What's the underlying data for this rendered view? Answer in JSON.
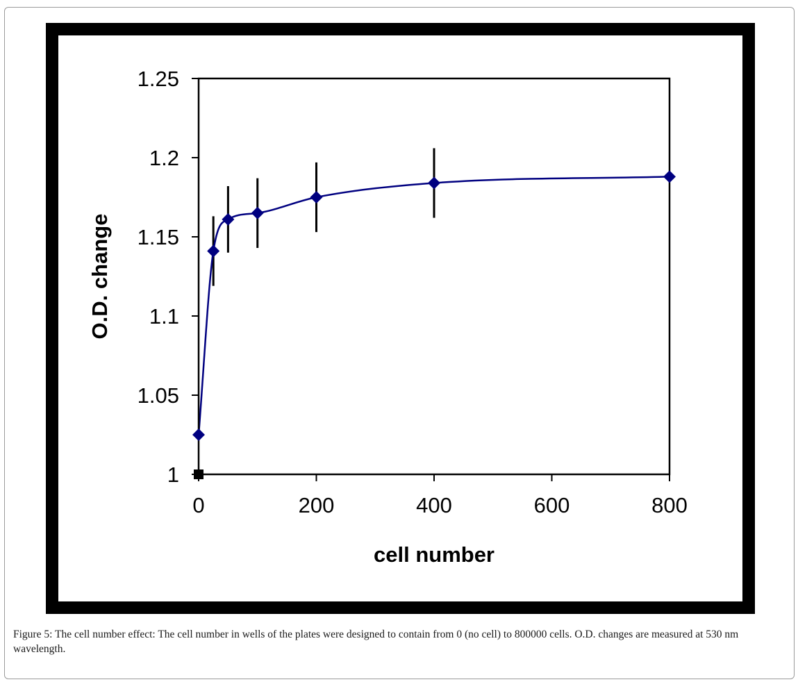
{
  "chart_data": {
    "type": "scatter",
    "title": "",
    "xlabel": "cell number",
    "ylabel": "O.D. change",
    "xlim": [
      0,
      800
    ],
    "ylim": [
      1,
      1.25
    ],
    "x_ticks": [
      0,
      200,
      400,
      600,
      800
    ],
    "x_tick_labels": [
      "0",
      "200",
      "400",
      "600",
      "800"
    ],
    "y_ticks": [
      1,
      1.05,
      1.1,
      1.15,
      1.2,
      1.25
    ],
    "y_tick_labels": [
      "1",
      "1.05",
      "1.1",
      "1.15",
      "1.2",
      "1.25"
    ],
    "grid": false,
    "legend": "none",
    "series": [
      {
        "marker": "diamond",
        "color": "#000080",
        "x": [
          0,
          25,
          50,
          100,
          200,
          400,
          800
        ],
        "y": [
          1.025,
          1.141,
          1.161,
          1.165,
          1.175,
          1.184,
          1.188
        ],
        "error": [
          0,
          0.022,
          0.021,
          0.022,
          0.022,
          0.022,
          0
        ],
        "trendline": true
      },
      {
        "marker": "square",
        "color": "#000000",
        "x": [
          0
        ],
        "y": [
          1.0
        ]
      }
    ]
  },
  "caption": "Figure 5: The cell number effect: The cell number in wells of the plates were designed to contain from 0 (no cell) to 800000 cells. O.D. changes are measured at 530 nm wavelength."
}
